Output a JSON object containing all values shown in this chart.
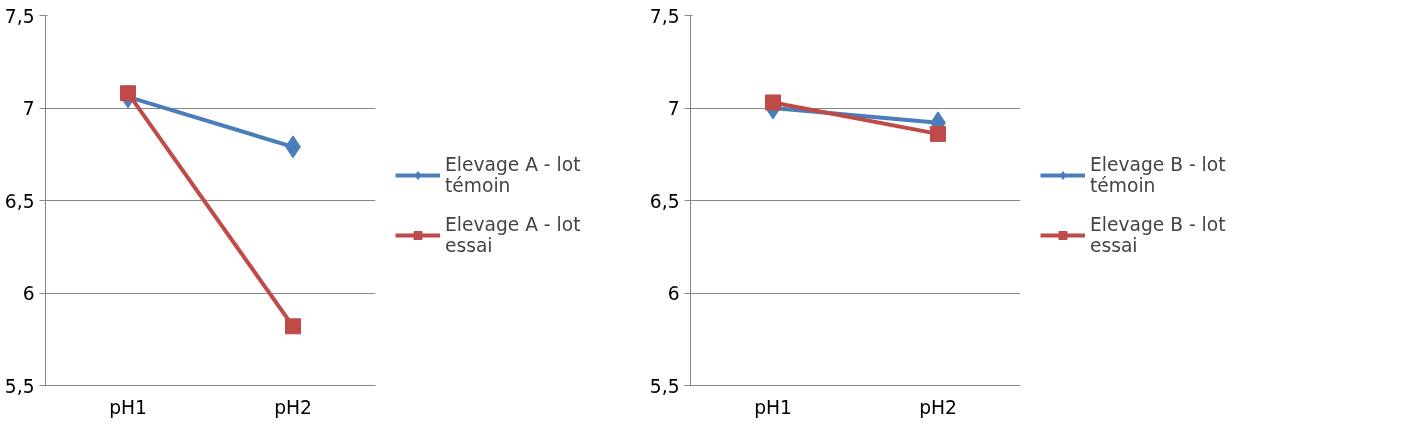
{
  "chart_data": [
    {
      "type": "line",
      "categories": [
        "pH1",
        "pH2"
      ],
      "ylim": [
        5.5,
        7.5
      ],
      "yticks": [
        {
          "value": 5.5,
          "label": "5,5"
        },
        {
          "value": 6,
          "label": "6"
        },
        {
          "value": 6.5,
          "label": "6,5"
        },
        {
          "value": 7,
          "label": "7"
        },
        {
          "value": 7.5,
          "label": "7,5"
        }
      ],
      "grid": "y",
      "legend": "right",
      "series": [
        {
          "name": "Elevage A - lot témoin",
          "color": "#4a7ebb",
          "marker": "diamond",
          "values": [
            7.06,
            6.79
          ]
        },
        {
          "name": "Elevage A - lot essai",
          "color": "#be4b48",
          "marker": "square",
          "values": [
            7.08,
            5.82
          ]
        }
      ]
    },
    {
      "type": "line",
      "categories": [
        "pH1",
        "pH2"
      ],
      "ylim": [
        5.5,
        7.5
      ],
      "yticks": [
        {
          "value": 5.5,
          "label": "5,5"
        },
        {
          "value": 6,
          "label": "6"
        },
        {
          "value": 6.5,
          "label": "6,5"
        },
        {
          "value": 7,
          "label": "7"
        },
        {
          "value": 7.5,
          "label": "7,5"
        }
      ],
      "grid": "y",
      "legend": "right",
      "series": [
        {
          "name": "Elevage B - lot témoin",
          "color": "#4a7ebb",
          "marker": "diamond",
          "values": [
            7.0,
            6.92
          ]
        },
        {
          "name": "Elevage B - lot essai",
          "color": "#be4b48",
          "marker": "square",
          "values": [
            7.03,
            6.86
          ]
        }
      ]
    }
  ]
}
